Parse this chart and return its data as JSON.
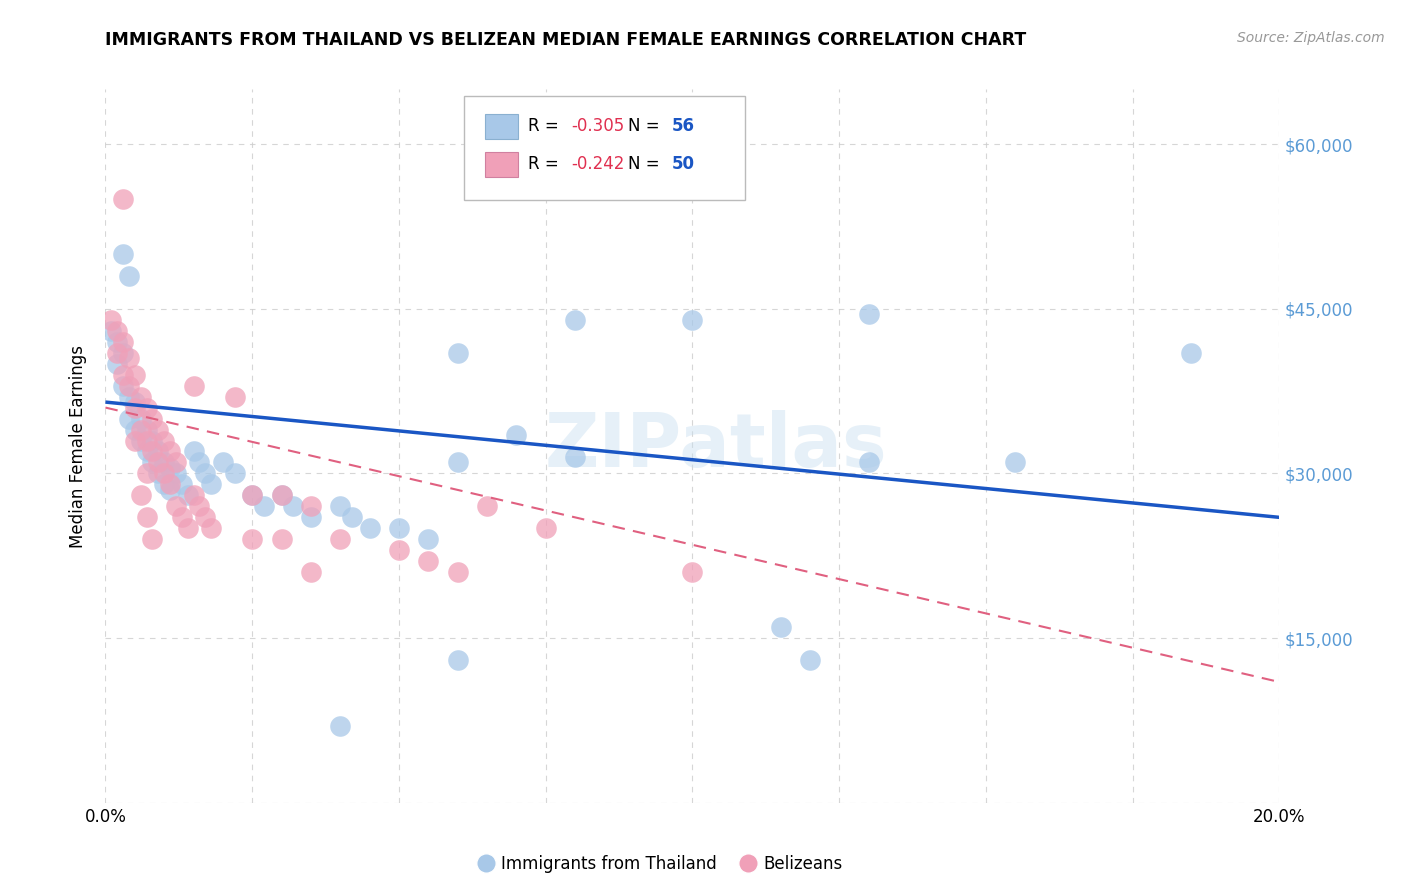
{
  "title": "IMMIGRANTS FROM THAILAND VS BELIZEAN MEDIAN FEMALE EARNINGS CORRELATION CHART",
  "source": "Source: ZipAtlas.com",
  "ylabel": "Median Female Earnings",
  "xlim": [
    0.0,
    0.2
  ],
  "ylim": [
    0,
    65000
  ],
  "yticks": [
    0,
    15000,
    30000,
    45000,
    60000
  ],
  "xticks": [
    0.0,
    0.025,
    0.05,
    0.075,
    0.1,
    0.125,
    0.15,
    0.175,
    0.2
  ],
  "xtick_labels": [
    "0.0%",
    "",
    "",
    "",
    "",
    "",
    "",
    "",
    "20.0%"
  ],
  "legend_label_blue": "Immigrants from Thailand",
  "legend_label_pink": "Belizeans",
  "legend_R_blue": "R = ",
  "legend_R_blue_val": "-0.305",
  "legend_N_blue": "   N = ",
  "legend_N_blue_val": "56",
  "legend_R_pink": "R = ",
  "legend_R_pink_val": "-0.242",
  "legend_N_pink": "   N = ",
  "legend_N_pink_val": "50",
  "watermark": "ZIPatlas",
  "blue_color": "#a8c8e8",
  "pink_color": "#f0a0b8",
  "trendline_blue_color": "#1a56c4",
  "trendline_pink_color": "#e06080",
  "grid_color": "#cccccc",
  "right_axis_color": "#5b9bd5",
  "blue_scatter": [
    [
      0.001,
      43000
    ],
    [
      0.002,
      42000
    ],
    [
      0.002,
      40000
    ],
    [
      0.003,
      41000
    ],
    [
      0.003,
      38000
    ],
    [
      0.004,
      37000
    ],
    [
      0.004,
      35000
    ],
    [
      0.005,
      36500
    ],
    [
      0.005,
      34000
    ],
    [
      0.006,
      35000
    ],
    [
      0.006,
      33000
    ],
    [
      0.007,
      34000
    ],
    [
      0.007,
      32000
    ],
    [
      0.008,
      33000
    ],
    [
      0.008,
      31000
    ],
    [
      0.009,
      32000
    ],
    [
      0.009,
      30000
    ],
    [
      0.01,
      31000
    ],
    [
      0.01,
      29000
    ],
    [
      0.011,
      30500
    ],
    [
      0.011,
      28500
    ],
    [
      0.012,
      30000
    ],
    [
      0.013,
      29000
    ],
    [
      0.014,
      28000
    ],
    [
      0.015,
      32000
    ],
    [
      0.016,
      31000
    ],
    [
      0.017,
      30000
    ],
    [
      0.018,
      29000
    ],
    [
      0.02,
      31000
    ],
    [
      0.022,
      30000
    ],
    [
      0.025,
      28000
    ],
    [
      0.027,
      27000
    ],
    [
      0.03,
      28000
    ],
    [
      0.032,
      27000
    ],
    [
      0.035,
      26000
    ],
    [
      0.04,
      27000
    ],
    [
      0.042,
      26000
    ],
    [
      0.045,
      25000
    ],
    [
      0.05,
      25000
    ],
    [
      0.055,
      24000
    ],
    [
      0.003,
      50000
    ],
    [
      0.004,
      48000
    ],
    [
      0.08,
      44000
    ],
    [
      0.06,
      41000
    ],
    [
      0.1,
      44000
    ],
    [
      0.13,
      31000
    ],
    [
      0.155,
      31000
    ],
    [
      0.185,
      41000
    ],
    [
      0.115,
      16000
    ],
    [
      0.12,
      13000
    ],
    [
      0.06,
      13000
    ],
    [
      0.04,
      7000
    ],
    [
      0.13,
      44500
    ],
    [
      0.08,
      31500
    ],
    [
      0.06,
      31000
    ],
    [
      0.07,
      33500
    ]
  ],
  "pink_scatter": [
    [
      0.001,
      44000
    ],
    [
      0.002,
      43000
    ],
    [
      0.002,
      41000
    ],
    [
      0.003,
      42000
    ],
    [
      0.003,
      39000
    ],
    [
      0.004,
      40500
    ],
    [
      0.004,
      38000
    ],
    [
      0.005,
      39000
    ],
    [
      0.005,
      36000
    ],
    [
      0.005,
      33000
    ],
    [
      0.006,
      37000
    ],
    [
      0.006,
      34000
    ],
    [
      0.007,
      36000
    ],
    [
      0.007,
      33000
    ],
    [
      0.007,
      30000
    ],
    [
      0.008,
      35000
    ],
    [
      0.008,
      32000
    ],
    [
      0.009,
      34000
    ],
    [
      0.009,
      31000
    ],
    [
      0.01,
      33000
    ],
    [
      0.01,
      30000
    ],
    [
      0.011,
      32000
    ],
    [
      0.011,
      29000
    ],
    [
      0.012,
      31000
    ],
    [
      0.003,
      55000
    ],
    [
      0.015,
      38000
    ],
    [
      0.015,
      28000
    ],
    [
      0.016,
      27000
    ],
    [
      0.017,
      26000
    ],
    [
      0.018,
      25000
    ],
    [
      0.022,
      37000
    ],
    [
      0.025,
      28000
    ],
    [
      0.025,
      24000
    ],
    [
      0.03,
      28000
    ],
    [
      0.03,
      24000
    ],
    [
      0.035,
      27000
    ],
    [
      0.035,
      21000
    ],
    [
      0.04,
      24000
    ],
    [
      0.05,
      23000
    ],
    [
      0.055,
      22000
    ],
    [
      0.065,
      27000
    ],
    [
      0.075,
      25000
    ],
    [
      0.012,
      27000
    ],
    [
      0.013,
      26000
    ],
    [
      0.014,
      25000
    ],
    [
      0.006,
      28000
    ],
    [
      0.007,
      26000
    ],
    [
      0.008,
      24000
    ],
    [
      0.06,
      21000
    ],
    [
      0.1,
      21000
    ]
  ],
  "blue_trend_x": [
    0.0,
    0.2
  ],
  "blue_trend_y": [
    36500,
    26000
  ],
  "pink_trend_x": [
    0.0,
    0.2
  ],
  "pink_trend_y": [
    36000,
    11000
  ]
}
